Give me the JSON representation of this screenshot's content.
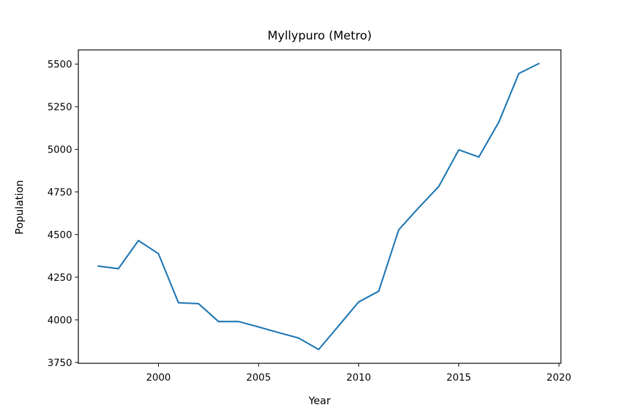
{
  "chart_data": {
    "type": "line",
    "title": "Myllypuro (Metro)",
    "xlabel": "Year",
    "ylabel": "Population",
    "xlim": [
      1996,
      2020.1
    ],
    "ylim": [
      3745,
      5583
    ],
    "xticks": [
      2000,
      2005,
      2010,
      2015,
      2020
    ],
    "yticks": [
      3750,
      4000,
      4250,
      4500,
      4750,
      5000,
      5250,
      5500
    ],
    "grid": false,
    "series": [
      {
        "color": "#1f77b4",
        "x": [
          1997,
          1998,
          1999,
          2000,
          2001,
          2002,
          2003,
          2004,
          2005,
          2006,
          2007,
          2008,
          2009,
          2010,
          2011,
          2012,
          2013,
          2014,
          2015,
          2016,
          2017,
          2018,
          2019
        ],
        "values": [
          4315,
          4300,
          4465,
          4388,
          4100,
          4095,
          3990,
          3990,
          3958,
          3925,
          3893,
          3826,
          3965,
          4105,
          4168,
          4528,
          4658,
          4782,
          4997,
          4955,
          5160,
          5445,
          5503
        ]
      }
    ]
  }
}
